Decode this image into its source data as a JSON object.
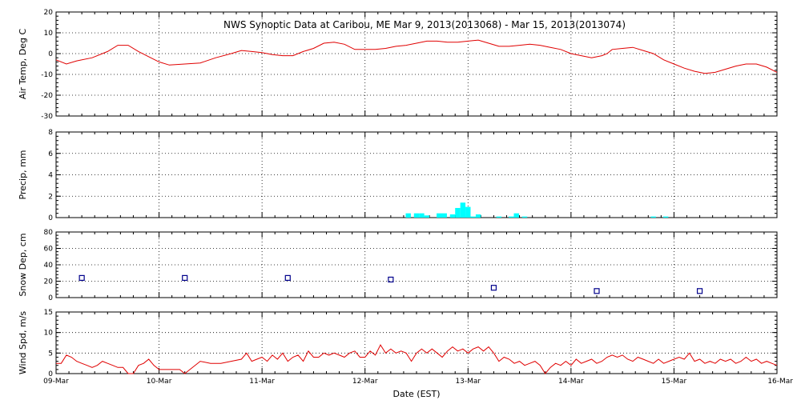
{
  "chart_data": {
    "type": "line",
    "title": "NWS Synoptic Data at Caribou, ME   Mar  9, 2013(2013068) - Mar 15, 2013(2013074)",
    "xlabel": "Date (EST)",
    "x_range_days": [
      0,
      7
    ],
    "x_ticks": [
      "09-Mar",
      "10-Mar",
      "11-Mar",
      "12-Mar",
      "13-Mar",
      "14-Mar",
      "15-Mar",
      "16-Mar"
    ],
    "grid": true,
    "colors": {
      "temp": "#e00000",
      "precip": "#00ffff",
      "snow": "#00008b",
      "wind": "#e00000"
    },
    "panels": [
      {
        "key": "temp",
        "type": "line",
        "ylabel": "Air Temp, Deg C",
        "ylim": [
          -30,
          20
        ],
        "yticks": [
          -30,
          -20,
          -10,
          0,
          10,
          20
        ],
        "values": [
          [
            0,
            -3
          ],
          [
            0.1,
            -5
          ],
          [
            0.2,
            -3.5
          ],
          [
            0.35,
            -2
          ],
          [
            0.5,
            1
          ],
          [
            0.6,
            4
          ],
          [
            0.7,
            4
          ],
          [
            0.8,
            1
          ],
          [
            0.9,
            -1.5
          ],
          [
            1.0,
            -4
          ],
          [
            1.1,
            -5.5
          ],
          [
            1.25,
            -5
          ],
          [
            1.4,
            -4.5
          ],
          [
            1.55,
            -2
          ],
          [
            1.7,
            0
          ],
          [
            1.8,
            1.5
          ],
          [
            1.9,
            1
          ],
          [
            2.0,
            0.5
          ],
          [
            2.1,
            -0.5
          ],
          [
            2.2,
            -1
          ],
          [
            2.3,
            -1
          ],
          [
            2.4,
            1
          ],
          [
            2.5,
            2.5
          ],
          [
            2.6,
            5
          ],
          [
            2.7,
            5.5
          ],
          [
            2.8,
            4.5
          ],
          [
            2.9,
            2
          ],
          [
            3.0,
            2
          ],
          [
            3.1,
            2
          ],
          [
            3.2,
            2.5
          ],
          [
            3.3,
            3.5
          ],
          [
            3.4,
            4
          ],
          [
            3.5,
            5
          ],
          [
            3.6,
            6
          ],
          [
            3.7,
            6
          ],
          [
            3.8,
            5.5
          ],
          [
            3.9,
            5.5
          ],
          [
            4.0,
            6
          ],
          [
            4.1,
            6.5
          ],
          [
            4.2,
            5
          ],
          [
            4.3,
            3.5
          ],
          [
            4.4,
            3.5
          ],
          [
            4.5,
            4
          ],
          [
            4.6,
            4.5
          ],
          [
            4.7,
            4
          ],
          [
            4.8,
            3
          ],
          [
            4.9,
            2
          ],
          [
            5.0,
            0
          ],
          [
            5.1,
            -1
          ],
          [
            5.2,
            -2
          ],
          [
            5.3,
            -1
          ],
          [
            5.35,
            0
          ],
          [
            5.4,
            2
          ],
          [
            5.5,
            2.5
          ],
          [
            5.6,
            3
          ],
          [
            5.7,
            1.5
          ],
          [
            5.8,
            0
          ],
          [
            5.9,
            -3
          ],
          [
            6.0,
            -5
          ],
          [
            6.1,
            -7
          ],
          [
            6.2,
            -8.5
          ],
          [
            6.3,
            -9.5
          ],
          [
            6.4,
            -9
          ],
          [
            6.5,
            -7.5
          ],
          [
            6.6,
            -6
          ],
          [
            6.7,
            -5
          ],
          [
            6.8,
            -5
          ],
          [
            6.9,
            -6.5
          ],
          [
            7.0,
            -9
          ]
        ]
      },
      {
        "key": "precip",
        "type": "bar",
        "ylabel": "Precip, mm",
        "ylim": [
          0,
          8
        ],
        "yticks": [
          0,
          2,
          4,
          6,
          8
        ],
        "bar_width_days": 0.05,
        "values": [
          [
            3.42,
            0.4
          ],
          [
            3.5,
            0.4
          ],
          [
            3.55,
            0.4
          ],
          [
            3.6,
            0.2
          ],
          [
            3.72,
            0.4
          ],
          [
            3.77,
            0.4
          ],
          [
            3.85,
            0.3
          ],
          [
            3.9,
            0.9
          ],
          [
            3.95,
            1.4
          ],
          [
            4.0,
            1.0
          ],
          [
            4.05,
            0.1
          ],
          [
            4.1,
            0.3
          ],
          [
            4.3,
            0.1
          ],
          [
            4.42,
            0.1
          ],
          [
            4.47,
            0.4
          ],
          [
            4.55,
            0.1
          ],
          [
            5.8,
            0.1
          ],
          [
            5.92,
            0.1
          ]
        ]
      },
      {
        "key": "snow",
        "type": "scatter",
        "ylabel": "Snow Dep, cm",
        "ylim": [
          0,
          80
        ],
        "yticks": [
          0,
          20,
          40,
          60,
          80
        ],
        "values": [
          [
            0.25,
            24
          ],
          [
            1.25,
            24
          ],
          [
            2.25,
            24
          ],
          [
            3.25,
            22
          ],
          [
            4.25,
            12
          ],
          [
            5.25,
            8
          ],
          [
            6.25,
            8
          ]
        ]
      },
      {
        "key": "wind",
        "type": "line",
        "ylabel": "Wind Spd, m/s",
        "ylim": [
          0,
          15
        ],
        "yticks": [
          0,
          5,
          10,
          15
        ],
        "values": [
          [
            0,
            2.5
          ],
          [
            0.05,
            2.5
          ],
          [
            0.1,
            4.5
          ],
          [
            0.15,
            4
          ],
          [
            0.2,
            3
          ],
          [
            0.25,
            2.5
          ],
          [
            0.3,
            2
          ],
          [
            0.35,
            1.5
          ],
          [
            0.4,
            2
          ],
          [
            0.45,
            3
          ],
          [
            0.5,
            2.5
          ],
          [
            0.55,
            2
          ],
          [
            0.6,
            1.5
          ],
          [
            0.65,
            1.5
          ],
          [
            0.7,
            0
          ],
          [
            0.75,
            0
          ],
          [
            0.8,
            2
          ],
          [
            0.85,
            2.5
          ],
          [
            0.9,
            3.5
          ],
          [
            0.95,
            2
          ],
          [
            1.0,
            1
          ],
          [
            1.05,
            1
          ],
          [
            1.1,
            1
          ],
          [
            1.15,
            1
          ],
          [
            1.2,
            1
          ],
          [
            1.25,
            0
          ],
          [
            1.3,
            1
          ],
          [
            1.4,
            3
          ],
          [
            1.5,
            2.5
          ],
          [
            1.6,
            2.5
          ],
          [
            1.7,
            3
          ],
          [
            1.8,
            3.5
          ],
          [
            1.85,
            5
          ],
          [
            1.9,
            3
          ],
          [
            1.95,
            3.5
          ],
          [
            2.0,
            4
          ],
          [
            2.05,
            3
          ],
          [
            2.1,
            4.5
          ],
          [
            2.15,
            3.5
          ],
          [
            2.2,
            5
          ],
          [
            2.25,
            3
          ],
          [
            2.3,
            4
          ],
          [
            2.35,
            4.5
          ],
          [
            2.4,
            3
          ],
          [
            2.45,
            5.5
          ],
          [
            2.5,
            4
          ],
          [
            2.55,
            4
          ],
          [
            2.6,
            5
          ],
          [
            2.65,
            4.5
          ],
          [
            2.7,
            5
          ],
          [
            2.75,
            4.5
          ],
          [
            2.8,
            4
          ],
          [
            2.85,
            5
          ],
          [
            2.9,
            5.5
          ],
          [
            2.95,
            4
          ],
          [
            3.0,
            4
          ],
          [
            3.05,
            5.5
          ],
          [
            3.1,
            4.5
          ],
          [
            3.15,
            7
          ],
          [
            3.2,
            5
          ],
          [
            3.25,
            6
          ],
          [
            3.3,
            5
          ],
          [
            3.35,
            5.5
          ],
          [
            3.4,
            5
          ],
          [
            3.45,
            3
          ],
          [
            3.5,
            5
          ],
          [
            3.55,
            6
          ],
          [
            3.6,
            5
          ],
          [
            3.65,
            6
          ],
          [
            3.7,
            5
          ],
          [
            3.75,
            4
          ],
          [
            3.8,
            5.5
          ],
          [
            3.85,
            6.5
          ],
          [
            3.9,
            5.5
          ],
          [
            3.95,
            6
          ],
          [
            4.0,
            5
          ],
          [
            4.05,
            6
          ],
          [
            4.1,
            6.5
          ],
          [
            4.15,
            5.5
          ],
          [
            4.2,
            6.5
          ],
          [
            4.25,
            5
          ],
          [
            4.3,
            3
          ],
          [
            4.35,
            4
          ],
          [
            4.4,
            3.5
          ],
          [
            4.45,
            2.5
          ],
          [
            4.5,
            3
          ],
          [
            4.55,
            2
          ],
          [
            4.6,
            2.5
          ],
          [
            4.65,
            3
          ],
          [
            4.7,
            2
          ],
          [
            4.75,
            0
          ],
          [
            4.8,
            1.5
          ],
          [
            4.85,
            2.5
          ],
          [
            4.9,
            2
          ],
          [
            4.95,
            3
          ],
          [
            5.0,
            2
          ],
          [
            5.05,
            3.5
          ],
          [
            5.1,
            2.5
          ],
          [
            5.15,
            3
          ],
          [
            5.2,
            3.5
          ],
          [
            5.25,
            2.5
          ],
          [
            5.3,
            3
          ],
          [
            5.35,
            4
          ],
          [
            5.4,
            4.5
          ],
          [
            5.45,
            4
          ],
          [
            5.5,
            4.5
          ],
          [
            5.55,
            3.5
          ],
          [
            5.6,
            3
          ],
          [
            5.65,
            4
          ],
          [
            5.7,
            3.5
          ],
          [
            5.75,
            3
          ],
          [
            5.8,
            2.5
          ],
          [
            5.85,
            3.5
          ],
          [
            5.9,
            2.5
          ],
          [
            5.95,
            3
          ],
          [
            6.0,
            3.5
          ],
          [
            6.05,
            4
          ],
          [
            6.1,
            3.5
          ],
          [
            6.15,
            5
          ],
          [
            6.2,
            3
          ],
          [
            6.25,
            3.5
          ],
          [
            6.3,
            2.5
          ],
          [
            6.35,
            3
          ],
          [
            6.4,
            2.5
          ],
          [
            6.45,
            3.5
          ],
          [
            6.5,
            3
          ],
          [
            6.55,
            3.5
          ],
          [
            6.6,
            2.5
          ],
          [
            6.65,
            3
          ],
          [
            6.7,
            4
          ],
          [
            6.75,
            3
          ],
          [
            6.8,
            3.5
          ],
          [
            6.85,
            2.5
          ],
          [
            6.9,
            3
          ],
          [
            6.95,
            2.5
          ],
          [
            7.0,
            2
          ]
        ]
      }
    ]
  }
}
